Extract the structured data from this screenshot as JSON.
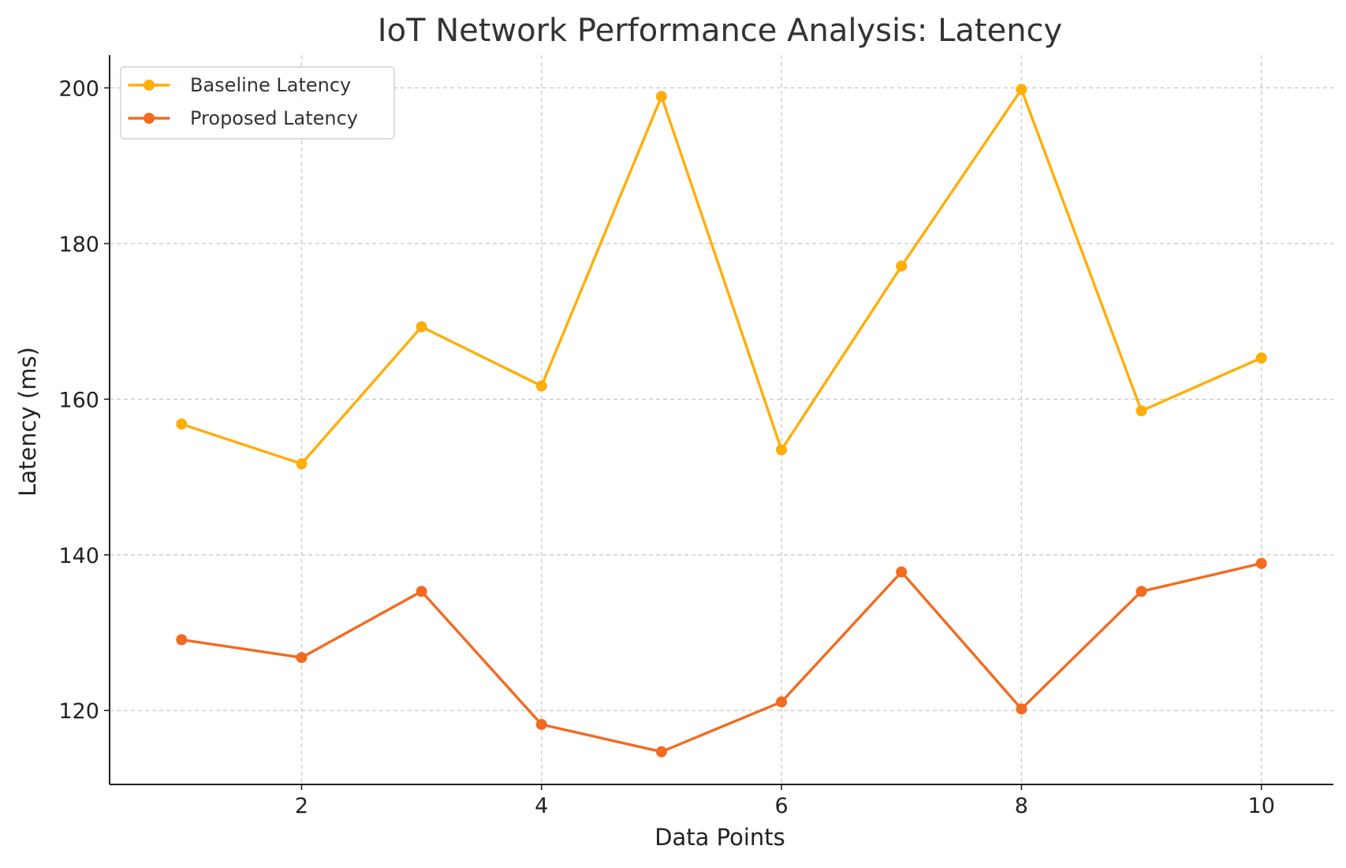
{
  "chart_data": {
    "type": "line",
    "title": "IoT Network Performance Analysis: Latency",
    "xlabel": "Data Points",
    "ylabel": "Latency (ms)",
    "x": [
      1,
      2,
      3,
      4,
      5,
      6,
      7,
      8,
      9,
      10
    ],
    "xlim": [
      0.4,
      10.6
    ],
    "ylim": [
      110.5,
      204.2
    ],
    "x_ticks": [
      2,
      4,
      6,
      8,
      10
    ],
    "y_ticks": [
      120,
      140,
      160,
      180,
      200
    ],
    "grid": true,
    "legend_position": "top-left",
    "series": [
      {
        "name": "Baseline Latency",
        "color": "#FFAE08",
        "marker": "circle",
        "values": [
          156.8,
          151.7,
          169.3,
          161.7,
          198.9,
          153.5,
          177.1,
          199.8,
          158.5,
          165.3
        ]
      },
      {
        "name": "Proposed Latency",
        "color": "#F26B21",
        "marker": "circle",
        "values": [
          129.1,
          126.8,
          135.3,
          118.2,
          114.7,
          121.1,
          137.8,
          120.2,
          135.3,
          138.9
        ]
      }
    ]
  }
}
